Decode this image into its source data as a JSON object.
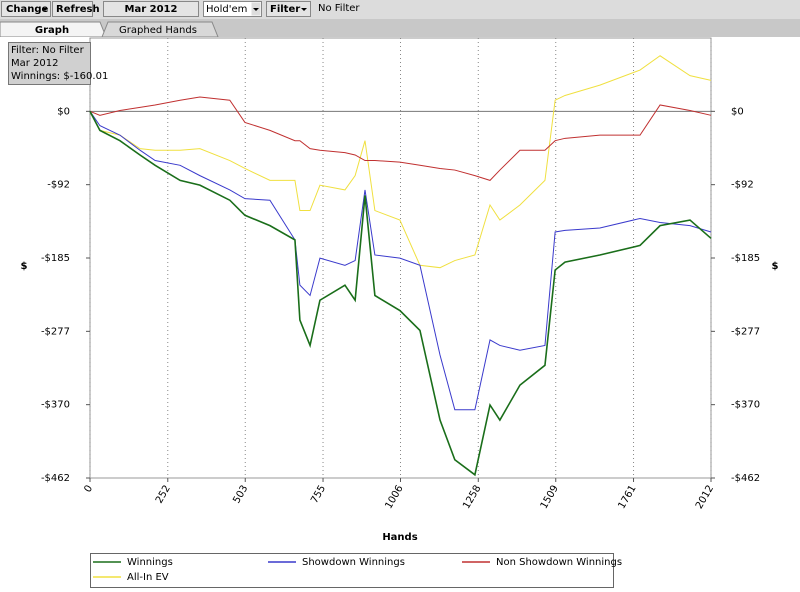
{
  "toolbar": {
    "buttons": [
      "Change",
      "Refresh",
      "Mar 2012",
      "Hold'em",
      "Filter"
    ],
    "filter_text": "No Filter"
  },
  "tabs": [
    "Graph",
    "Graphed Hands"
  ],
  "chart_data": {
    "type": "line",
    "annotations": [
      "Filter: No Filter",
      "Mar 2012",
      "Winnings: $-160.01"
    ],
    "x_label": "Hands",
    "y_label": "$",
    "x": [
      0,
      32,
      97,
      162,
      211,
      292,
      356,
      453,
      502,
      583,
      664,
      680,
      713,
      745,
      826,
      859,
      891,
      923,
      1004,
      1069,
      1134,
      1182,
      1247,
      1296,
      1328,
      1393,
      1474,
      1507,
      1539,
      1652,
      1782,
      1847,
      1944,
      2012
    ],
    "series": [
      {
        "name": "Winnings",
        "color": "#1a6e1a",
        "values": [
          0,
          -24,
          -37,
          -55,
          -68,
          -87,
          -93,
          -112,
          -131,
          -144,
          -162,
          -263,
          -295,
          -238,
          -219,
          -238,
          -106,
          -232,
          -251,
          -276,
          -389,
          -439,
          -458,
          -370,
          -389,
          -345,
          -320,
          -200,
          -190,
          -181,
          -169,
          -144,
          -137,
          -160.01
        ]
      },
      {
        "name": "Showdown Winnings",
        "color": "#3a3acc",
        "values": [
          0,
          -18,
          -30,
          -49,
          -62,
          -68,
          -81,
          -99,
          -110,
          -112,
          -162,
          -219,
          -232,
          -185,
          -194,
          -188,
          -99,
          -181,
          -185,
          -194,
          -307,
          -376,
          -376,
          -288,
          -295,
          -301,
          -295,
          -152,
          -150,
          -147,
          -135,
          -140,
          -144,
          -152
        ]
      },
      {
        "name": "Non Showdown Winnings",
        "color": "#c03030",
        "values": [
          0,
          -5,
          1,
          5,
          8,
          14,
          18,
          14,
          -14,
          -24,
          -37,
          -37,
          -47,
          -49,
          -52,
          -55,
          -62,
          -62,
          -64,
          -68,
          -72,
          -74,
          -81,
          -87,
          -74,
          -49,
          -49,
          -37,
          -34,
          -30,
          -30,
          8,
          1,
          -5
        ]
      },
      {
        "name": "All-In EV",
        "color": "#f0e040",
        "values": [
          0,
          -24,
          -30,
          -47,
          -49,
          -49,
          -47,
          -62,
          -72,
          -87,
          -87,
          -125,
          -125,
          -93,
          -99,
          -81,
          -37,
          -125,
          -137,
          -194,
          -197,
          -188,
          -181,
          -118,
          -137,
          -118,
          -87,
          14,
          20,
          33,
          52,
          70,
          45,
          39
        ]
      }
    ],
    "xlim": [
      0,
      2012
    ],
    "xticks": [
      0,
      252,
      503,
      755,
      1006,
      1258,
      1509,
      1761,
      2012
    ],
    "ylim": [
      -462,
      92.4
    ],
    "yticks": [
      {
        "value": 0,
        "label": "$0"
      },
      {
        "value": -92.4,
        "label": "-$92"
      },
      {
        "value": -184.8,
        "label": "-$185"
      },
      {
        "value": -277.2,
        "label": "-$277"
      },
      {
        "value": -369.6,
        "label": "-$370"
      },
      {
        "value": -462,
        "label": "-$462"
      }
    ],
    "grid": "x"
  }
}
